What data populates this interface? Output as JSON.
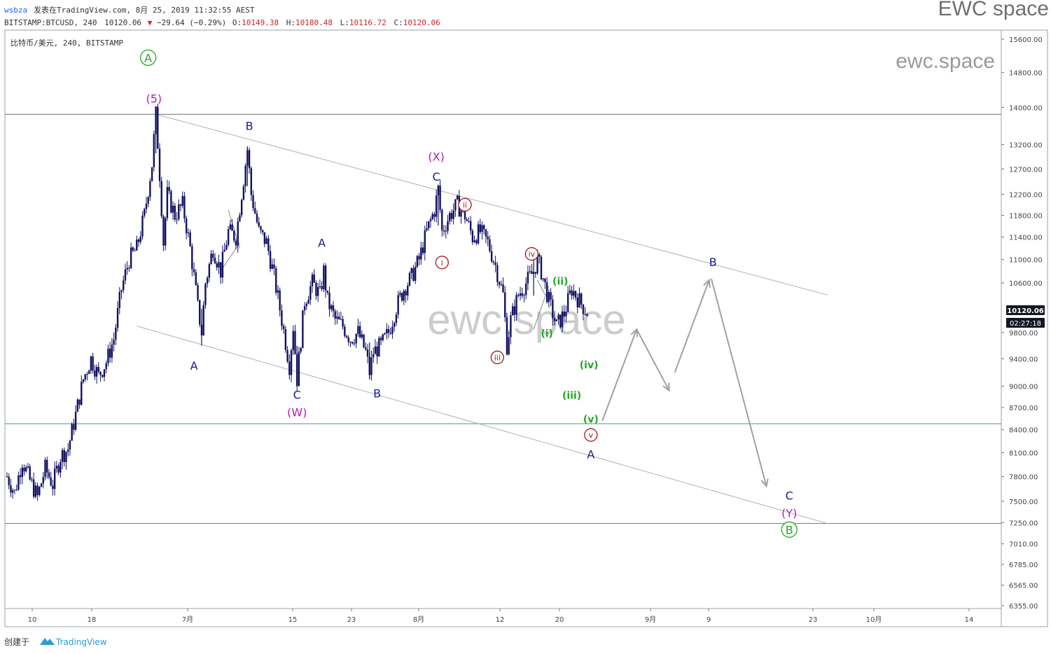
{
  "header": {
    "author": "wsbza",
    "published": "发表在TradingView.com, 8月 25, 2019 11:32:55 AEST",
    "symbol": "BITSTAMP:BTCUSD, 240",
    "last": "10120.06",
    "change": "−29.64 (−0.29%)",
    "o_label": "O:",
    "o": "10149.38",
    "h_label": "H:",
    "h": "10180.48",
    "l_label": "L:",
    "l": "10116.72",
    "c_label": "C:",
    "c": "10120.06",
    "brand": "EWC space",
    "pane_title": "比特币/美元, 240, BITSTAMP"
  },
  "watermark": {
    "main": "ewc.space",
    "corner": "ewc.space"
  },
  "footer": {
    "created_by": "创建于",
    "tv_logo_text": "TradingView"
  },
  "price_box": {
    "price": "10120.06",
    "countdown": "02:27:18"
  },
  "colors": {
    "candle": "#131060",
    "blue_label": "#1a1a8c",
    "magenta": "#b21fb2",
    "green": "#21a821",
    "darkred": "#a01818",
    "hline": "#4f8f8f",
    "channel": "#b0b0b8",
    "projection": "#a0a0a8",
    "price_box": "#131722"
  },
  "chart_data": {
    "type": "candlestick",
    "symbol": "BITSTAMP:BTCUSD",
    "interval": "240",
    "y_axis_ticks": [
      "15600.00",
      "14800.00",
      "14000.00",
      "13200.00",
      "12700.00",
      "12200.00",
      "11800.00",
      "11400.00",
      "11000.00",
      "10600.00",
      "9800.00",
      "9400.00",
      "9000.00",
      "8700.00",
      "8400.00",
      "8100.00",
      "7800.00",
      "7500.00",
      "7250.00",
      "7010.00",
      "6785.00",
      "6565.00",
      "6355.00"
    ],
    "x_axis_ticks": [
      "10",
      "18",
      "7月",
      "15",
      "23",
      "8月",
      "12",
      "20",
      "9月",
      "9",
      "23",
      "10月",
      "14"
    ],
    "y_scale": "log",
    "y_range": [
      6300,
      15700
    ],
    "last_price": 10120.06,
    "horizontal_lines": [
      13850,
      8480,
      7240
    ],
    "price_path": [
      [
        0,
        7800
      ],
      [
        2,
        7600
      ],
      [
        4,
        8000
      ],
      [
        6,
        7750
      ],
      [
        8,
        7550
      ],
      [
        10,
        7900
      ],
      [
        12,
        7700
      ],
      [
        14,
        8050
      ],
      [
        16,
        8150
      ],
      [
        18,
        8600
      ],
      [
        20,
        9100
      ],
      [
        22,
        9400
      ],
      [
        24,
        9150
      ],
      [
        26,
        9350
      ],
      [
        28,
        9700
      ],
      [
        30,
        10500
      ],
      [
        32,
        11000
      ],
      [
        34,
        11200
      ],
      [
        36,
        11800
      ],
      [
        38,
        12800
      ],
      [
        39,
        13850
      ],
      [
        40,
        12600
      ],
      [
        41,
        11300
      ],
      [
        42,
        12200
      ],
      [
        44,
        11800
      ],
      [
        46,
        12000
      ],
      [
        48,
        11200
      ],
      [
        50,
        10200
      ],
      [
        51,
        9800
      ],
      [
        52,
        10600
      ],
      [
        54,
        11200
      ],
      [
        56,
        10800
      ],
      [
        58,
        11500
      ],
      [
        60,
        11400
      ],
      [
        62,
        12500
      ],
      [
        63,
        13100
      ],
      [
        64,
        12200
      ],
      [
        66,
        11500
      ],
      [
        68,
        11300
      ],
      [
        70,
        10700
      ],
      [
        72,
        10000
      ],
      [
        74,
        9300
      ],
      [
        75,
        9900
      ],
      [
        76,
        9100
      ],
      [
        77,
        9700
      ],
      [
        78,
        10300
      ],
      [
        80,
        10600
      ],
      [
        82,
        10400
      ],
      [
        83,
        10800
      ],
      [
        84,
        10300
      ],
      [
        86,
        10000
      ],
      [
        88,
        9900
      ],
      [
        90,
        9700
      ],
      [
        92,
        9800
      ],
      [
        94,
        9500
      ],
      [
        95,
        9200
      ],
      [
        96,
        9500
      ],
      [
        98,
        9600
      ],
      [
        100,
        9800
      ],
      [
        102,
        10200
      ],
      [
        104,
        10500
      ],
      [
        106,
        10700
      ],
      [
        108,
        11000
      ],
      [
        110,
        11500
      ],
      [
        112,
        11900
      ],
      [
        113,
        12300
      ],
      [
        114,
        11500
      ],
      [
        116,
        11800
      ],
      [
        118,
        12000
      ],
      [
        120,
        11800
      ],
      [
        122,
        11400
      ],
      [
        124,
        11500
      ],
      [
        126,
        11300
      ],
      [
        128,
        10900
      ],
      [
        130,
        10400
      ],
      [
        131,
        9600
      ],
      [
        132,
        10000
      ],
      [
        134,
        10400
      ],
      [
        136,
        10600
      ],
      [
        138,
        10800
      ],
      [
        139,
        11000
      ],
      [
        140,
        10800
      ],
      [
        142,
        10300
      ],
      [
        144,
        9900
      ],
      [
        146,
        10100
      ],
      [
        148,
        10500
      ],
      [
        150,
        10300
      ],
      [
        152,
        10120
      ]
    ],
    "channel_upper": [
      [
        39,
        13850
      ],
      [
        215,
        10400
      ]
    ],
    "channel_lower": [
      [
        34,
        9900
      ],
      [
        215,
        7240
      ]
    ],
    "wave_labels": [
      {
        "text": "A",
        "style": "circle",
        "color": "green",
        "bar": 37,
        "price": 15150
      },
      {
        "text": "(5)",
        "style": "plain",
        "color": "magenta",
        "bar": 38.5,
        "price": 14200
      },
      {
        "text": "B",
        "style": "plain",
        "color": "blue",
        "bar": 63.5,
        "price": 13600
      },
      {
        "text": "A",
        "style": "plain",
        "color": "blue",
        "bar": 49,
        "price": 9300
      },
      {
        "text": "A",
        "style": "plain",
        "color": "blue",
        "bar": 82.5,
        "price": 11300
      },
      {
        "text": "C",
        "style": "plain",
        "color": "blue",
        "bar": 76,
        "price": 8880
      },
      {
        "text": "(W)",
        "style": "plain",
        "color": "magenta",
        "bar": 76,
        "price": 8640
      },
      {
        "text": "B",
        "style": "plain",
        "color": "blue",
        "bar": 97,
        "price": 8900
      },
      {
        "text": "(X)",
        "style": "plain",
        "color": "magenta",
        "bar": 112.5,
        "price": 12950
      },
      {
        "text": "C",
        "style": "plain",
        "color": "blue",
        "bar": 112.5,
        "price": 12550
      },
      {
        "text": "i",
        "style": "circle",
        "color": "darkred",
        "bar": 114,
        "price": 10950
      },
      {
        "text": "ii",
        "style": "circle",
        "color": "darkred",
        "bar": 120,
        "price": 12000
      },
      {
        "text": "iii",
        "style": "circle",
        "color": "darkred",
        "bar": 128.5,
        "price": 9420
      },
      {
        "text": "iv",
        "style": "circle",
        "color": "darkred",
        "bar": 137.5,
        "price": 11100
      },
      {
        "text": "v",
        "style": "circle",
        "color": "darkred",
        "bar": 153,
        "price": 8330
      },
      {
        "text": "(i)",
        "style": "plain",
        "color": "green",
        "bar": 141.5,
        "price": 9800
      },
      {
        "text": "(ii)",
        "style": "plain",
        "color": "green",
        "bar": 145,
        "price": 10640
      },
      {
        "text": "(iii)",
        "style": "plain",
        "color": "green",
        "bar": 148,
        "price": 8880
      },
      {
        "text": "(iv)",
        "style": "plain",
        "color": "green",
        "bar": 152.5,
        "price": 9320
      },
      {
        "text": "(v)",
        "style": "plain",
        "color": "green",
        "bar": 153,
        "price": 8550
      },
      {
        "text": "A",
        "style": "plain",
        "color": "blue",
        "bar": 153,
        "price": 8080
      },
      {
        "text": "B",
        "style": "plain",
        "color": "blue",
        "bar": 185,
        "price": 10960
      },
      {
        "text": "C",
        "style": "plain",
        "color": "blue",
        "bar": 205,
        "price": 7570
      },
      {
        "text": "(Y)",
        "style": "plain",
        "color": "magenta",
        "bar": 205,
        "price": 7360
      },
      {
        "text": "B",
        "style": "circle",
        "color": "green",
        "bar": 205,
        "price": 7170
      }
    ],
    "projection_path": [
      [
        156,
        8520
      ],
      [
        165,
        9850
      ],
      [
        173.5,
        8940
      ],
      [
        175,
        9200
      ],
      [
        184,
        10650
      ],
      [
        199,
        7680
      ],
      [
        206,
        7600
      ]
    ]
  }
}
